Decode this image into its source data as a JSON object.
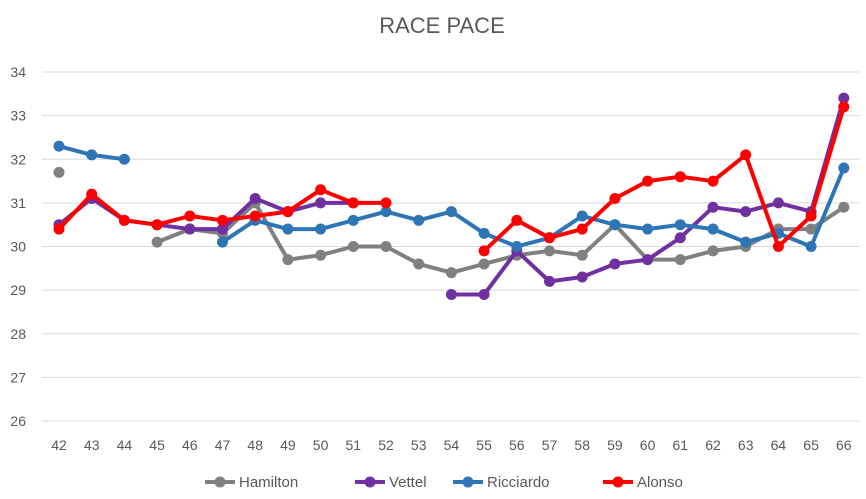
{
  "chart_data": {
    "type": "line",
    "title": "RACE PACE",
    "xlabel": "",
    "ylabel": "",
    "ylim": [
      26,
      34
    ],
    "yticks": [
      26,
      27,
      28,
      29,
      30,
      31,
      32,
      33,
      34
    ],
    "grid": true,
    "legend_position": "bottom",
    "categories": [
      42,
      43,
      44,
      45,
      46,
      47,
      48,
      49,
      50,
      51,
      52,
      53,
      54,
      55,
      56,
      57,
      58,
      59,
      60,
      61,
      62,
      63,
      64,
      65,
      66
    ],
    "series": [
      {
        "name": "Hamilton",
        "color": "#808080",
        "values": [
          31.7,
          null,
          null,
          30.1,
          30.4,
          30.3,
          31.0,
          29.7,
          29.8,
          30.0,
          30.0,
          29.6,
          29.4,
          29.6,
          29.8,
          29.9,
          29.8,
          30.5,
          29.7,
          29.7,
          29.9,
          30.0,
          30.4,
          30.4,
          30.9
        ]
      },
      {
        "name": "Vettel",
        "color": "#7030a0",
        "values": [
          30.5,
          31.1,
          30.6,
          30.5,
          30.4,
          30.4,
          31.1,
          30.8,
          31.0,
          31.0,
          null,
          null,
          28.9,
          28.9,
          29.9,
          29.2,
          29.3,
          29.6,
          29.7,
          30.2,
          30.9,
          30.8,
          31.0,
          30.8,
          33.4
        ]
      },
      {
        "name": "Ricciardo",
        "color": "#2e75b6",
        "values": [
          32.3,
          32.1,
          32.0,
          null,
          null,
          30.1,
          30.6,
          30.4,
          30.4,
          30.6,
          30.8,
          30.6,
          30.8,
          30.3,
          30.0,
          30.2,
          30.7,
          30.5,
          30.4,
          30.5,
          30.4,
          30.1,
          30.3,
          30.0,
          31.8
        ]
      },
      {
        "name": "Alonso",
        "color": "#ff0000",
        "values": [
          30.4,
          31.2,
          30.6,
          30.5,
          30.7,
          30.6,
          30.7,
          30.8,
          31.3,
          31.0,
          31.0,
          null,
          null,
          29.9,
          30.6,
          30.2,
          30.4,
          31.1,
          31.5,
          31.6,
          31.5,
          32.1,
          30.0,
          30.7,
          33.2
        ]
      }
    ]
  }
}
